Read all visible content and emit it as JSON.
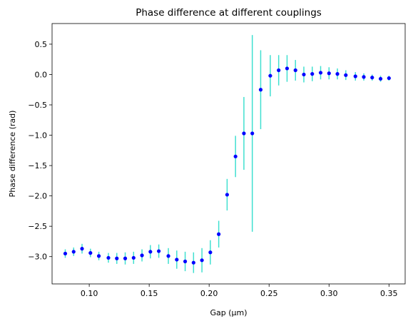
{
  "chart_data": {
    "type": "scatter",
    "title": "Phase difference at different couplings",
    "xlabel": "Gap (μm)",
    "ylabel": "Phase difference (rad)",
    "xlim": [
      0.069,
      0.3635
    ],
    "ylim": [
      -3.45,
      0.84
    ],
    "xticks": [
      0.1,
      0.15,
      0.2,
      0.25,
      0.3,
      0.35
    ],
    "xtick_labels": [
      "0.10",
      "0.15",
      "0.20",
      "0.25",
      "0.30",
      "0.35"
    ],
    "yticks": [
      -3.0,
      -2.5,
      -2.0,
      -1.5,
      -1.0,
      -0.5,
      0.0,
      0.5
    ],
    "ytick_labels": [
      "−3.0",
      "−2.5",
      "−2.0",
      "−1.5",
      "−1.0",
      "−0.5",
      "0.0",
      "0.5"
    ],
    "grid": false,
    "legend": "none",
    "marker_color": "#0000ff",
    "errorbar_color": "#40e0d0",
    "x": [
      0.08,
      0.087,
      0.094,
      0.101,
      0.108,
      0.116,
      0.123,
      0.13,
      0.137,
      0.144,
      0.151,
      0.158,
      0.166,
      0.173,
      0.18,
      0.187,
      0.194,
      0.201,
      0.208,
      0.215,
      0.222,
      0.229,
      0.236,
      0.243,
      0.251,
      0.258,
      0.265,
      0.272,
      0.279,
      0.286,
      0.293,
      0.3,
      0.307,
      0.314,
      0.322,
      0.329,
      0.336,
      0.343,
      0.35
    ],
    "y": [
      -2.95,
      -2.92,
      -2.87,
      -2.94,
      -2.99,
      -3.02,
      -3.03,
      -3.03,
      -3.02,
      -2.98,
      -2.92,
      -2.91,
      -2.99,
      -3.05,
      -3.08,
      -3.1,
      -3.06,
      -2.93,
      -2.63,
      -1.98,
      -1.35,
      -0.97,
      -0.97,
      -0.25,
      -0.02,
      0.07,
      0.1,
      0.07,
      0.0,
      0.01,
      0.03,
      0.02,
      0.01,
      -0.01,
      -0.03,
      -0.04,
      -0.05,
      -0.07,
      -0.06
    ],
    "yerr": [
      0.07,
      0.07,
      0.08,
      0.07,
      0.07,
      0.08,
      0.09,
      0.1,
      0.1,
      0.1,
      0.11,
      0.11,
      0.13,
      0.15,
      0.16,
      0.17,
      0.2,
      0.2,
      0.22,
      0.26,
      0.34,
      0.6,
      1.62,
      0.65,
      0.34,
      0.25,
      0.22,
      0.17,
      0.13,
      0.12,
      0.11,
      0.1,
      0.09,
      0.08,
      0.07,
      0.06,
      0.05,
      0.05,
      0.04
    ]
  }
}
